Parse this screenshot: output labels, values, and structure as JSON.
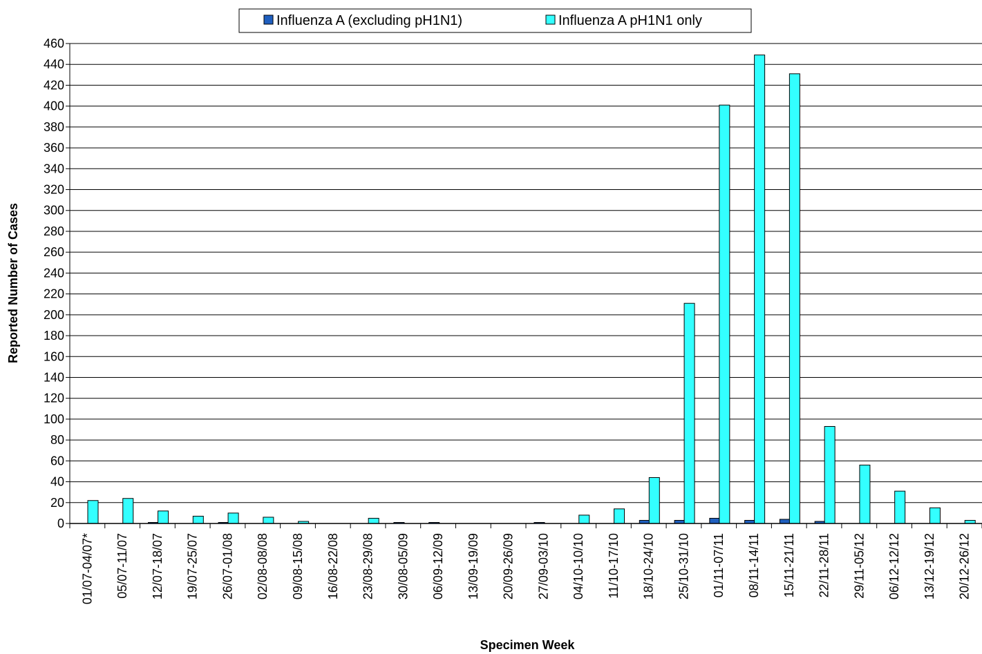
{
  "chart_data": {
    "type": "bar",
    "xlabel": "Specimen Week",
    "ylabel": "Reported Number of Cases",
    "ylim": [
      0,
      460
    ],
    "ytick_step": 20,
    "grid": "horizontal",
    "legend_position": "top",
    "categories": [
      "01/07-04/07*",
      "05/07-11/07",
      "12/07-18/07",
      "19/07-25/07",
      "26/07-01/08",
      "02/08-08/08",
      "09/08-15/08",
      "16/08-22/08",
      "23/08-29/08",
      "30/08-05/09",
      "06/09-12/09",
      "13/09-19/09",
      "20/09-26/09",
      "27/09-03/10",
      "04/10-10/10",
      "11/10-17/10",
      "18/10-24/10",
      "25/10-31/10",
      "01/11-07/11",
      "08/11-14/11",
      "15/11-21/11",
      "22/11-28/11",
      "29/11-05/12",
      "06/12-12/12",
      "13/12-19/12",
      "20/12-26/12"
    ],
    "series": [
      {
        "name": "Influenza A (excluding pH1N1)",
        "color": "#1F5FBF",
        "values": [
          0,
          0,
          1,
          0,
          1,
          0,
          0,
          0,
          0,
          1,
          1,
          0,
          0,
          1,
          0,
          0,
          3,
          3,
          5,
          3,
          4,
          2,
          0,
          0,
          0,
          0
        ]
      },
      {
        "name": "Influenza A pH1N1 only",
        "color": "#33FFFF",
        "values": [
          22,
          24,
          12,
          7,
          10,
          6,
          2,
          0,
          5,
          0,
          0,
          0,
          0,
          0,
          8,
          14,
          44,
          211,
          401,
          449,
          431,
          93,
          56,
          31,
          15,
          3
        ]
      }
    ]
  }
}
